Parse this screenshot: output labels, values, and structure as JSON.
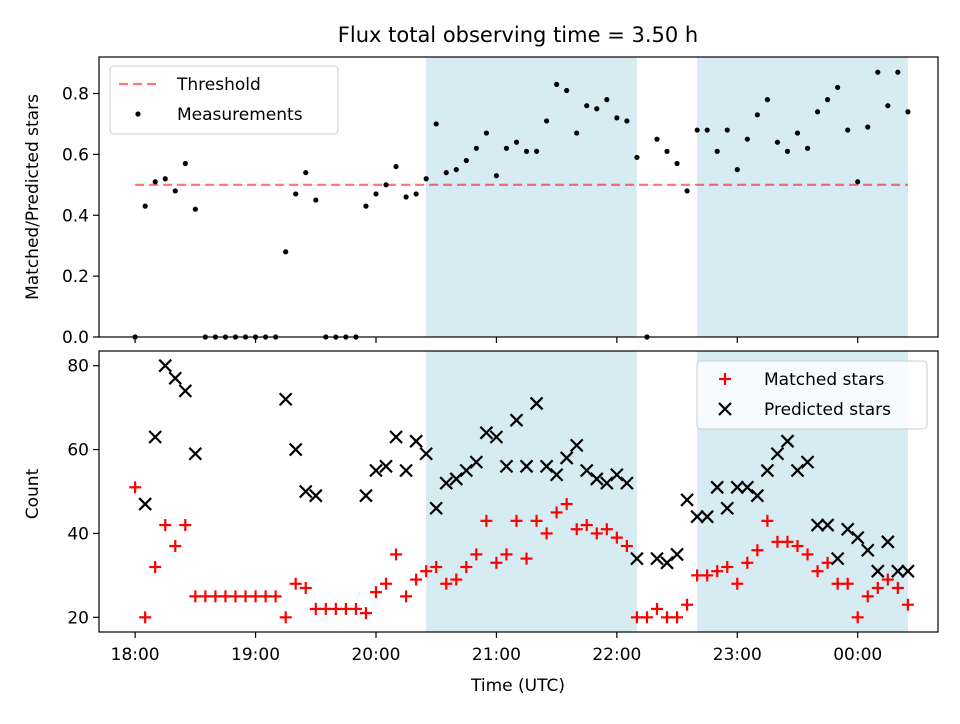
{
  "title": "Flux total observing time = 3.50 h",
  "x_axis": {
    "label": "Time (UTC)",
    "unit": "minutes after 18:00 UTC",
    "range": [
      -18,
      400
    ],
    "ticks": [
      {
        "value": 0,
        "label": "18:00"
      },
      {
        "value": 60,
        "label": "19:00"
      },
      {
        "value": 120,
        "label": "20:00"
      },
      {
        "value": 180,
        "label": "21:00"
      },
      {
        "value": 240,
        "label": "22:00"
      },
      {
        "value": 300,
        "label": "23:00"
      },
      {
        "value": 360,
        "label": "00:00"
      }
    ]
  },
  "colors": {
    "band": "#add8e6",
    "threshold": "#ff0000",
    "measurements": "#000000",
    "matched": "#ff0000",
    "predicted": "#000000"
  },
  "chart_data": [
    {
      "type": "scatter",
      "ylabel": "Matched/Predicted stars",
      "ylim": [
        0,
        0.92
      ],
      "yticks": [
        0,
        0.2,
        0.4,
        0.6,
        0.8
      ],
      "ytick_labels": [
        "0.0",
        "0.2",
        "0.4",
        "0.6",
        "0.8"
      ],
      "legend_position": "top-left",
      "legend": [
        {
          "label": "Threshold",
          "style": "dashed-line"
        },
        {
          "label": "Measurements",
          "style": "dot"
        }
      ],
      "shaded_bands_x": [
        [
          145,
          250
        ],
        [
          280,
          385
        ]
      ],
      "threshold": {
        "value": 0.5,
        "x_range": [
          0,
          385
        ]
      },
      "series": [
        {
          "name": "Measurements",
          "points": [
            [
              0,
              0.0
            ],
            [
              5,
              0.43
            ],
            [
              10,
              0.51
            ],
            [
              15,
              0.52
            ],
            [
              20,
              0.48
            ],
            [
              25,
              0.57
            ],
            [
              30,
              0.42
            ],
            [
              35,
              0.0
            ],
            [
              40,
              0.0
            ],
            [
              45,
              0.0
            ],
            [
              50,
              0.0
            ],
            [
              55,
              0.0
            ],
            [
              60,
              0.0
            ],
            [
              65,
              0.0
            ],
            [
              70,
              0.0
            ],
            [
              75,
              0.28
            ],
            [
              80,
              0.47
            ],
            [
              85,
              0.54
            ],
            [
              90,
              0.45
            ],
            [
              95,
              0.0
            ],
            [
              100,
              0.0
            ],
            [
              105,
              0.0
            ],
            [
              110,
              0.0
            ],
            [
              115,
              0.43
            ],
            [
              120,
              0.47
            ],
            [
              125,
              0.5
            ],
            [
              130,
              0.56
            ],
            [
              135,
              0.46
            ],
            [
              140,
              0.47
            ],
            [
              145,
              0.52
            ],
            [
              150,
              0.7
            ],
            [
              155,
              0.54
            ],
            [
              160,
              0.55
            ],
            [
              165,
              0.58
            ],
            [
              170,
              0.62
            ],
            [
              175,
              0.67
            ],
            [
              180,
              0.53
            ],
            [
              185,
              0.62
            ],
            [
              190,
              0.64
            ],
            [
              195,
              0.61
            ],
            [
              200,
              0.61
            ],
            [
              205,
              0.71
            ],
            [
              210,
              0.83
            ],
            [
              215,
              0.81
            ],
            [
              220,
              0.67
            ],
            [
              225,
              0.76
            ],
            [
              230,
              0.75
            ],
            [
              235,
              0.78
            ],
            [
              240,
              0.72
            ],
            [
              245,
              0.71
            ],
            [
              250,
              0.59
            ],
            [
              255,
              0.0
            ],
            [
              260,
              0.65
            ],
            [
              265,
              0.61
            ],
            [
              270,
              0.57
            ],
            [
              275,
              0.48
            ],
            [
              280,
              0.68
            ],
            [
              285,
              0.68
            ],
            [
              290,
              0.61
            ],
            [
              295,
              0.68
            ],
            [
              300,
              0.55
            ],
            [
              305,
              0.65
            ],
            [
              310,
              0.73
            ],
            [
              315,
              0.78
            ],
            [
              320,
              0.64
            ],
            [
              325,
              0.61
            ],
            [
              330,
              0.67
            ],
            [
              335,
              0.62
            ],
            [
              340,
              0.74
            ],
            [
              345,
              0.78
            ],
            [
              350,
              0.82
            ],
            [
              355,
              0.68
            ],
            [
              360,
              0.51
            ],
            [
              365,
              0.69
            ],
            [
              370,
              0.87
            ],
            [
              375,
              0.76
            ],
            [
              380,
              0.87
            ],
            [
              385,
              0.74
            ]
          ]
        }
      ]
    },
    {
      "type": "scatter",
      "xlabel": "Time (UTC)",
      "ylabel": "Count",
      "ylim": [
        16.5,
        83.5
      ],
      "yticks": [
        20,
        40,
        60,
        80
      ],
      "ytick_labels": [
        "20",
        "40",
        "60",
        "80"
      ],
      "legend_position": "top-right",
      "legend": [
        {
          "label": "Matched stars",
          "style": "plus"
        },
        {
          "label": "Predicted stars",
          "style": "x"
        }
      ],
      "shaded_bands_x": [
        [
          145,
          250
        ],
        [
          280,
          385
        ]
      ],
      "series": [
        {
          "name": "Matched stars",
          "points": [
            [
              0,
              51
            ],
            [
              5,
              20
            ],
            [
              10,
              32
            ],
            [
              15,
              42
            ],
            [
              20,
              37
            ],
            [
              25,
              42
            ],
            [
              30,
              25
            ],
            [
              35,
              25
            ],
            [
              40,
              25
            ],
            [
              45,
              25
            ],
            [
              50,
              25
            ],
            [
              55,
              25
            ],
            [
              60,
              25
            ],
            [
              65,
              25
            ],
            [
              70,
              25
            ],
            [
              75,
              20
            ],
            [
              80,
              28
            ],
            [
              85,
              27
            ],
            [
              90,
              22
            ],
            [
              95,
              22
            ],
            [
              100,
              22
            ],
            [
              105,
              22
            ],
            [
              110,
              22
            ],
            [
              115,
              21
            ],
            [
              120,
              26
            ],
            [
              125,
              28
            ],
            [
              130,
              35
            ],
            [
              135,
              25
            ],
            [
              140,
              29
            ],
            [
              145,
              31
            ],
            [
              150,
              32
            ],
            [
              155,
              28
            ],
            [
              160,
              29
            ],
            [
              165,
              32
            ],
            [
              170,
              35
            ],
            [
              175,
              43
            ],
            [
              180,
              33
            ],
            [
              185,
              35
            ],
            [
              190,
              43
            ],
            [
              195,
              34
            ],
            [
              200,
              43
            ],
            [
              205,
              40
            ],
            [
              210,
              45
            ],
            [
              215,
              47
            ],
            [
              220,
              41
            ],
            [
              225,
              42
            ],
            [
              230,
              40
            ],
            [
              235,
              41
            ],
            [
              240,
              39
            ],
            [
              245,
              37
            ],
            [
              250,
              20
            ],
            [
              255,
              20
            ],
            [
              260,
              22
            ],
            [
              265,
              20
            ],
            [
              270,
              20
            ],
            [
              275,
              23
            ],
            [
              280,
              30
            ],
            [
              285,
              30
            ],
            [
              290,
              31
            ],
            [
              295,
              32
            ],
            [
              300,
              28
            ],
            [
              305,
              33
            ],
            [
              310,
              36
            ],
            [
              315,
              43
            ],
            [
              320,
              38
            ],
            [
              325,
              38
            ],
            [
              330,
              37
            ],
            [
              335,
              35
            ],
            [
              340,
              31
            ],
            [
              345,
              33
            ],
            [
              350,
              28
            ],
            [
              355,
              28
            ],
            [
              360,
              20
            ],
            [
              365,
              25
            ],
            [
              370,
              27
            ],
            [
              375,
              29
            ],
            [
              380,
              27
            ],
            [
              385,
              23
            ]
          ]
        },
        {
          "name": "Predicted stars",
          "points": [
            [
              5,
              47
            ],
            [
              10,
              63
            ],
            [
              15,
              80
            ],
            [
              20,
              77
            ],
            [
              25,
              74
            ],
            [
              30,
              59
            ],
            [
              75,
              72
            ],
            [
              80,
              60
            ],
            [
              85,
              50
            ],
            [
              90,
              49
            ],
            [
              115,
              49
            ],
            [
              120,
              55
            ],
            [
              125,
              56
            ],
            [
              130,
              63
            ],
            [
              135,
              55
            ],
            [
              140,
              62
            ],
            [
              145,
              59
            ],
            [
              150,
              46
            ],
            [
              155,
              52
            ],
            [
              160,
              53
            ],
            [
              165,
              55
            ],
            [
              170,
              57
            ],
            [
              175,
              64
            ],
            [
              180,
              63
            ],
            [
              185,
              56
            ],
            [
              190,
              67
            ],
            [
              195,
              56
            ],
            [
              200,
              71
            ],
            [
              205,
              56
            ],
            [
              210,
              54
            ],
            [
              215,
              58
            ],
            [
              220,
              61
            ],
            [
              225,
              55
            ],
            [
              230,
              53
            ],
            [
              235,
              52
            ],
            [
              240,
              54
            ],
            [
              245,
              52
            ],
            [
              250,
              34
            ],
            [
              260,
              34
            ],
            [
              265,
              33
            ],
            [
              270,
              35
            ],
            [
              275,
              48
            ],
            [
              280,
              44
            ],
            [
              285,
              44
            ],
            [
              290,
              51
            ],
            [
              295,
              46
            ],
            [
              300,
              51
            ],
            [
              305,
              51
            ],
            [
              310,
              49
            ],
            [
              315,
              55
            ],
            [
              320,
              59
            ],
            [
              325,
              62
            ],
            [
              330,
              55
            ],
            [
              335,
              57
            ],
            [
              340,
              42
            ],
            [
              345,
              42
            ],
            [
              350,
              34
            ],
            [
              355,
              41
            ],
            [
              360,
              39
            ],
            [
              365,
              36
            ],
            [
              370,
              31
            ],
            [
              375,
              38
            ],
            [
              380,
              31
            ],
            [
              385,
              31
            ]
          ]
        }
      ]
    }
  ]
}
